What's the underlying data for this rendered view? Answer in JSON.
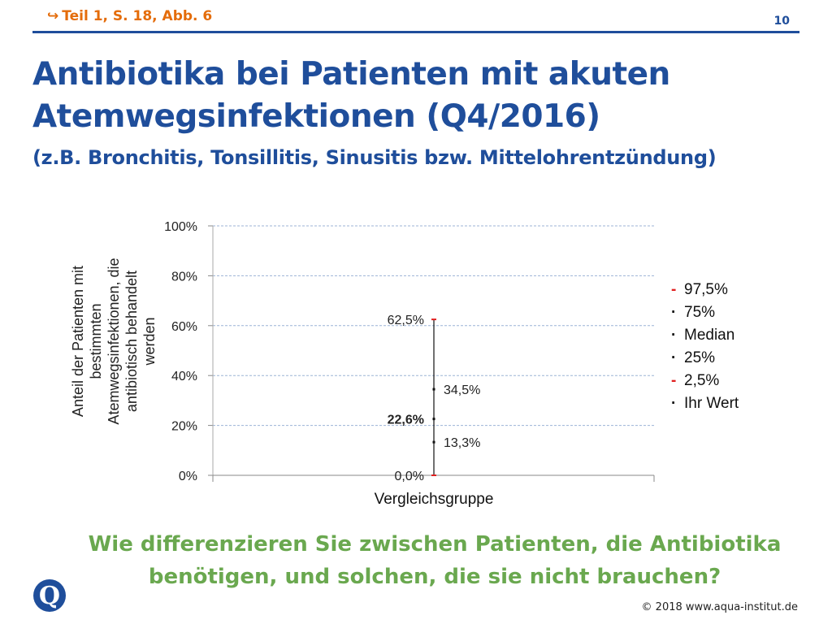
{
  "header": {
    "breadcrumb": "Teil 1, S. 18, Abb. 6",
    "page_number": "10",
    "title_line1": "Antibiotika bei Patienten mit akuten",
    "title_line2": "Atemwegsinfektionen (Q4/2016)",
    "subtitle": "(z.B. Bronchitis, Tonsillitis, Sinusitis bzw. Mittelohrentzündung)"
  },
  "chart_data": {
    "type": "scatter",
    "xlabel": "Vergleichsgruppe",
    "ylabel_lines": [
      "Anteil der Patienten mit",
      "bestimmten",
      "Atemwegsinfektionen, die",
      "antibiotisch behandelt",
      "werden"
    ],
    "ylim": [
      0,
      100
    ],
    "y_ticks": [
      "0%",
      "20%",
      "40%",
      "60%",
      "80%",
      "100%"
    ],
    "grid": true,
    "legend_placement": "right",
    "points": [
      {
        "key": "p97_5",
        "value": 62.5,
        "label": "62,5%",
        "bold": false,
        "label_side": "left"
      },
      {
        "key": "p75",
        "value": 34.5,
        "label": "34,5%",
        "bold": false,
        "label_side": "right"
      },
      {
        "key": "median",
        "value": 22.6,
        "label": "22,6%",
        "bold": true,
        "label_side": "left"
      },
      {
        "key": "p25",
        "value": 13.3,
        "label": "13,3%",
        "bold": false,
        "label_side": "right"
      },
      {
        "key": "p2_5",
        "value": 0.0,
        "label": "0,0%",
        "bold": false,
        "label_side": "left"
      }
    ],
    "legend": [
      {
        "mark": "-",
        "label": "97,5%",
        "color": "#e02020"
      },
      {
        "mark": "·",
        "label": "75%",
        "color": "#111111"
      },
      {
        "mark": "·",
        "label": "Median",
        "color": "#111111"
      },
      {
        "mark": "·",
        "label": "25%",
        "color": "#111111"
      },
      {
        "mark": "-",
        "label": "2,5%",
        "color": "#e02020"
      },
      {
        "mark": "·",
        "label": "Ihr Wert",
        "color": "#111111"
      }
    ],
    "colors": {
      "percentile_tick": "#e02020",
      "whisker": "#111111",
      "grid": "#9cb3d6"
    }
  },
  "footer": {
    "question_line1": "Wie differenzieren Sie zwischen Patienten, die Antibiotika",
    "question_line2": "benötigen, und solchen, die sie nicht brauchen?",
    "copyright": "© 2018 www.aqua-institut.de",
    "logo_letter": "Q"
  },
  "colors": {
    "brand_blue": "#1f4e9b",
    "accent_orange": "#e46c0a",
    "question_green": "#6aa84f"
  }
}
